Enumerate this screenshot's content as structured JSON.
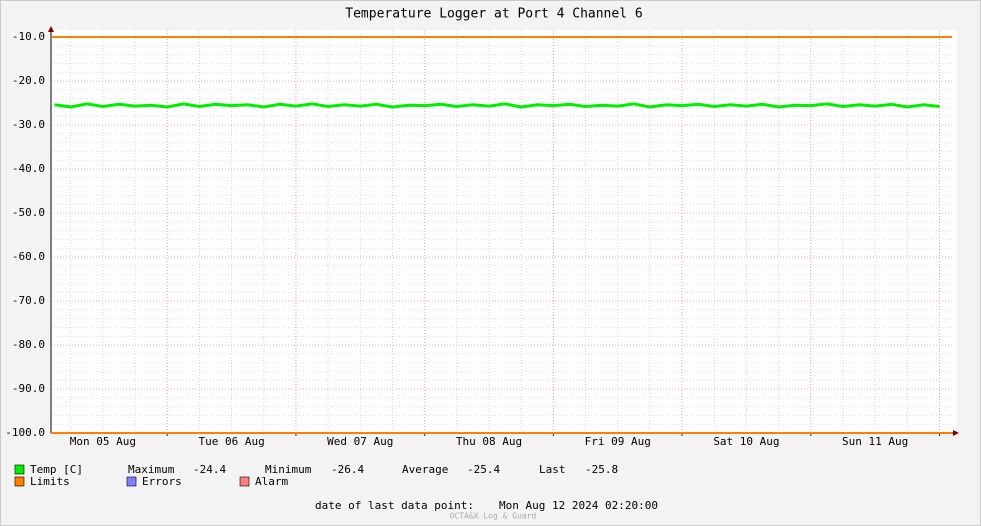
{
  "chart_data": {
    "type": "line",
    "title": "Temperature Logger at Port 4 Channel 6",
    "xlim": [
      5.097,
      12.097
    ],
    "xticks": [
      {
        "value": 5.5,
        "label": "Mon 05 Aug"
      },
      {
        "value": 6.5,
        "label": "Tue 06 Aug"
      },
      {
        "value": 7.5,
        "label": "Wed 07 Aug"
      },
      {
        "value": 8.5,
        "label": "Thu 08 Aug"
      },
      {
        "value": 9.5,
        "label": "Fri 09 Aug"
      },
      {
        "value": 10.5,
        "label": "Sat 10 Aug"
      },
      {
        "value": 11.5,
        "label": "Sun 11 Aug"
      }
    ],
    "x_major_grid": [
      6,
      7,
      8,
      9,
      10,
      11,
      12
    ],
    "ylim": [
      -100,
      -10
    ],
    "yticks": [
      {
        "value": -10,
        "label": "-10.0"
      },
      {
        "value": -20,
        "label": "-20.0"
      },
      {
        "value": -30,
        "label": "-30.0"
      },
      {
        "value": -40,
        "label": "-40.0"
      },
      {
        "value": -50,
        "label": "-50.0"
      },
      {
        "value": -60,
        "label": "-60.0"
      },
      {
        "value": -70,
        "label": "-70.0"
      },
      {
        "value": -80,
        "label": "-80.0"
      },
      {
        "value": -90,
        "label": "-90.0"
      },
      {
        "value": -100,
        "label": "-100.0"
      }
    ],
    "grid": true,
    "series": [
      {
        "name": "Temp [C]",
        "color": "#00ee00",
        "x": [
          5.125,
          5.25,
          5.375,
          5.5,
          5.625,
          5.75,
          5.875,
          6,
          6.125,
          6.25,
          6.375,
          6.5,
          6.625,
          6.75,
          6.875,
          7,
          7.125,
          7.25,
          7.375,
          7.5,
          7.625,
          7.75,
          7.875,
          8,
          8.125,
          8.25,
          8.375,
          8.5,
          8.625,
          8.75,
          8.875,
          9,
          9.125,
          9.25,
          9.375,
          9.5,
          9.625,
          9.75,
          9.875,
          10,
          10.125,
          10.25,
          10.375,
          10.5,
          10.625,
          10.75,
          10.875,
          11,
          11.125,
          11.25,
          11.375,
          11.5,
          11.625,
          11.75,
          11.875,
          12
        ],
        "values": [
          -25.4,
          -25.9,
          -25.2,
          -25.8,
          -25.3,
          -25.7,
          -25.5,
          -25.9,
          -25.2,
          -25.8,
          -25.3,
          -25.6,
          -25.4,
          -25.9,
          -25.3,
          -25.7,
          -25.2,
          -25.8,
          -25.4,
          -25.7,
          -25.3,
          -25.9,
          -25.5,
          -25.6,
          -25.3,
          -25.8,
          -25.4,
          -25.7,
          -25.2,
          -25.9,
          -25.4,
          -25.6,
          -25.3,
          -25.8,
          -25.5,
          -25.7,
          -25.2,
          -25.9,
          -25.4,
          -25.6,
          -25.3,
          -25.8,
          -25.4,
          -25.7,
          -25.3,
          -25.9,
          -25.5,
          -25.6,
          -25.2,
          -25.8,
          -25.4,
          -25.7,
          -25.3,
          -25.9,
          -25.4,
          -25.8
        ]
      }
    ],
    "limits": {
      "name": "Limits",
      "color": "#ff7f00",
      "values": [
        -10,
        -100
      ]
    },
    "extra_legend": [
      {
        "name": "Errors",
        "color": "#7f7fff"
      },
      {
        "name": "Alarm",
        "color": "#ff7f7f"
      }
    ],
    "stats": [
      {
        "label": "Maximum",
        "value": -24.4
      },
      {
        "label": "Minimum",
        "value": -26.4
      },
      {
        "label": "Average",
        "value": -25.4
      },
      {
        "label": "Last",
        "value": -25.8
      }
    ],
    "footer": {
      "label": "date of last data point:",
      "value": "Mon Aug 12 2024 02:20:00"
    },
    "watermark": "OCTA&X Log & Guard"
  }
}
